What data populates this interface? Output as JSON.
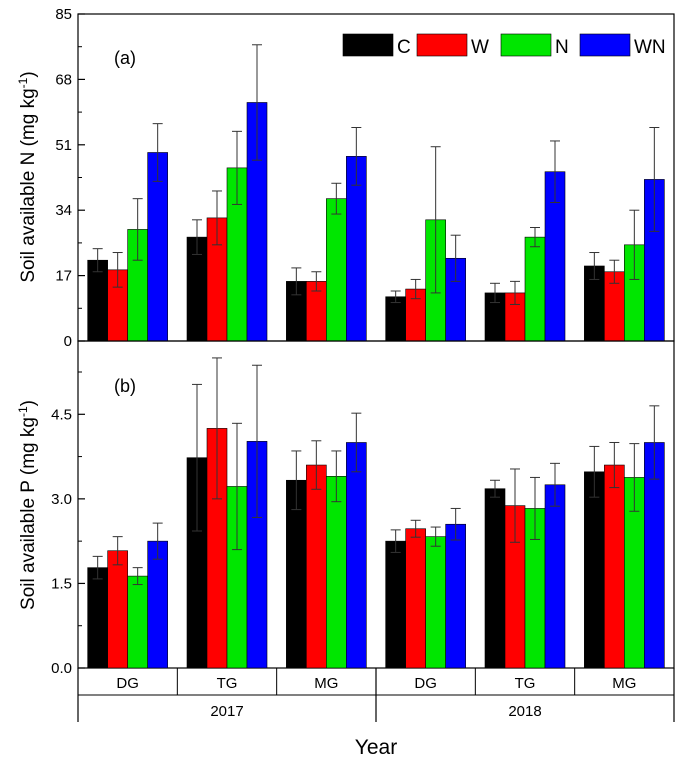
{
  "chart_data": {
    "type": "bar",
    "legend": [
      "C",
      "W",
      "N",
      "WN"
    ],
    "colors": [
      "#000000",
      "#ff0000",
      "#00e600",
      "#0000ff"
    ],
    "legend_placement": "top-right",
    "categories": [
      "DG",
      "TG",
      "MG",
      "DG",
      "TG",
      "MG"
    ],
    "groups": [
      {
        "label": "2017",
        "categories": [
          "DG",
          "TG",
          "MG"
        ]
      },
      {
        "label": "2018",
        "categories": [
          "DG",
          "TG",
          "MG"
        ]
      }
    ],
    "xlabel": "Year",
    "grid": false,
    "panels": [
      {
        "id": "a",
        "panel_label": "(a)",
        "ylabel": "Soil available N (mg kg-1)",
        "ylabel_main": "Soil available N (mg kg",
        "ylabel_sup": "-1",
        "ylabel_end": ")",
        "ylim": [
          0,
          85
        ],
        "yticks": [
          0,
          17,
          34,
          51,
          68,
          85
        ],
        "ytick_labels": [
          "0",
          "17",
          "34",
          "51",
          "68",
          "85"
        ],
        "series": [
          {
            "name": "C",
            "values": [
              21.0,
              27.0,
              15.5,
              11.5,
              12.5,
              19.5
            ],
            "errors": [
              3.0,
              4.5,
              3.5,
              1.5,
              2.5,
              3.5
            ]
          },
          {
            "name": "W",
            "values": [
              18.5,
              32.0,
              15.5,
              13.5,
              12.5,
              18.0
            ],
            "errors": [
              4.5,
              7.0,
              2.5,
              2.5,
              3.0,
              3.0
            ]
          },
          {
            "name": "N",
            "values": [
              29.0,
              45.0,
              37.0,
              31.5,
              27.0,
              25.0
            ],
            "errors": [
              8.0,
              9.5,
              4.0,
              19.0,
              2.5,
              9.0
            ]
          },
          {
            "name": "WN",
            "values": [
              49.0,
              62.0,
              48.0,
              21.5,
              44.0,
              42.0
            ],
            "errors": [
              7.5,
              15.0,
              7.5,
              6.0,
              8.0,
              13.5
            ]
          }
        ]
      },
      {
        "id": "b",
        "panel_label": "(b)",
        "ylabel": "Soil available P (mg kg-1)",
        "ylabel_main": "Soil available P (mg kg",
        "ylabel_sup": "-1",
        "ylabel_end": ")",
        "ylim": [
          0,
          5.8
        ],
        "yticks": [
          0,
          1.5,
          3.0,
          4.5
        ],
        "ytick_labels": [
          "0.0",
          "1.5",
          "3.0",
          "4.5"
        ],
        "series": [
          {
            "name": "C",
            "values": [
              1.78,
              3.73,
              3.33,
              2.25,
              3.18,
              3.48
            ],
            "errors": [
              0.2,
              1.3,
              0.52,
              0.2,
              0.15,
              0.45
            ]
          },
          {
            "name": "W",
            "values": [
              2.08,
              4.25,
              3.6,
              2.47,
              2.88,
              3.6
            ],
            "errors": [
              0.25,
              1.25,
              0.43,
              0.15,
              0.65,
              0.4
            ]
          },
          {
            "name": "N",
            "values": [
              1.63,
              3.22,
              3.4,
              2.33,
              2.83,
              3.38
            ],
            "errors": [
              0.15,
              1.12,
              0.45,
              0.17,
              0.55,
              0.6
            ]
          },
          {
            "name": "WN",
            "values": [
              2.25,
              4.02,
              4.0,
              2.55,
              3.25,
              4.0
            ],
            "errors": [
              0.32,
              1.35,
              0.52,
              0.28,
              0.38,
              0.65
            ]
          }
        ]
      }
    ]
  }
}
